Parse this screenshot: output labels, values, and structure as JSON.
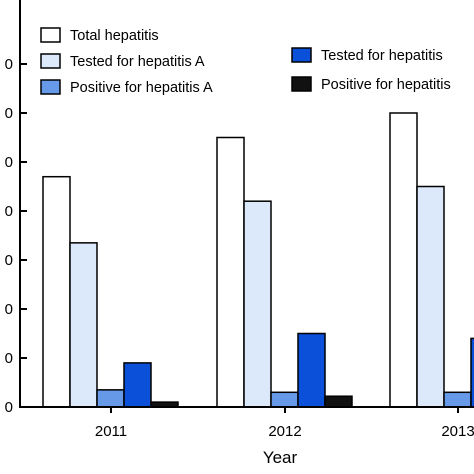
{
  "chart_data": {
    "type": "bar",
    "xlabel": "Year",
    "categories": [
      "2011",
      "2012",
      "2013"
    ],
    "y_tick_labels": [
      "0",
      "0",
      "0",
      "0",
      "0",
      "0",
      "0",
      "0"
    ],
    "ylim": [
      0,
      70
    ],
    "series": [
      {
        "name": "Total hepatitis",
        "color": "#ffffff",
        "values": [
          47,
          55,
          60
        ]
      },
      {
        "name": "Tested for hepatitis A",
        "color": "#dbe9fa",
        "values": [
          33.5,
          42,
          45
        ]
      },
      {
        "name": "Positive for hepatitis A",
        "color": "#6699e8",
        "values": [
          3.5,
          3,
          3
        ]
      },
      {
        "name": "Tested for hepatitis",
        "color": "#0a50d8",
        "values": [
          9,
          15,
          14
        ]
      },
      {
        "name": "Positive for hepatitis",
        "color": "#111111",
        "values": [
          1,
          2.2,
          null
        ]
      }
    ],
    "legend_position": "top"
  }
}
